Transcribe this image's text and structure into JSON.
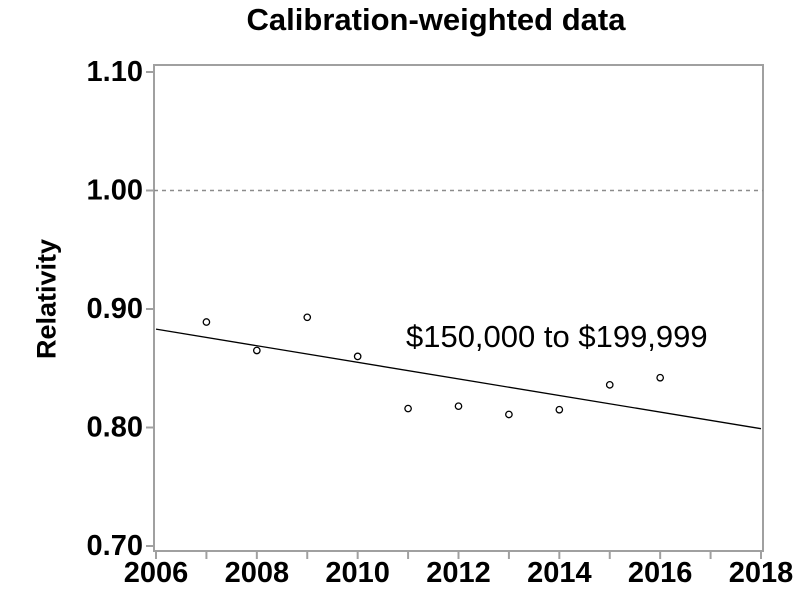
{
  "chart_data": {
    "type": "scatter",
    "title": "Calibration-weighted data",
    "ylabel": "Relativity",
    "xlabel": "",
    "xlim": [
      2006,
      2018
    ],
    "ylim": [
      0.7,
      1.1
    ],
    "x_tick_step": 1,
    "x_label_step": 2,
    "y_ticks": [
      0.7,
      0.8,
      0.9,
      1.0,
      1.1
    ],
    "y_tick_labels": [
      "0.70",
      "0.80",
      "0.90",
      "1.00",
      "1.10"
    ],
    "x_tick_labels": [
      "2006",
      "2008",
      "2010",
      "2012",
      "2014",
      "2016",
      "2018"
    ],
    "grid": false,
    "legend": "none",
    "reference_line": {
      "y": 1.0,
      "style": "dashed"
    },
    "points": [
      {
        "x": 2007,
        "y": 0.889
      },
      {
        "x": 2008,
        "y": 0.865
      },
      {
        "x": 2009,
        "y": 0.893
      },
      {
        "x": 2010,
        "y": 0.86
      },
      {
        "x": 2011,
        "y": 0.816
      },
      {
        "x": 2012,
        "y": 0.818
      },
      {
        "x": 2013,
        "y": 0.811
      },
      {
        "x": 2014,
        "y": 0.815
      },
      {
        "x": 2015,
        "y": 0.836
      },
      {
        "x": 2016,
        "y": 0.842
      }
    ],
    "trend_line": {
      "x1": 2006,
      "y1": 0.883,
      "x2": 2018,
      "y2": 0.799
    },
    "annotation": {
      "text": "$150,000 to $199,999",
      "x": 2013.95,
      "y": 0.877
    },
    "colors": {
      "background": "#ffffff",
      "frame": "#a0a0a0",
      "tick": "#a0a0a0",
      "reference_line": "#8c8c8c",
      "data": "#000000",
      "text": "#000000"
    }
  }
}
